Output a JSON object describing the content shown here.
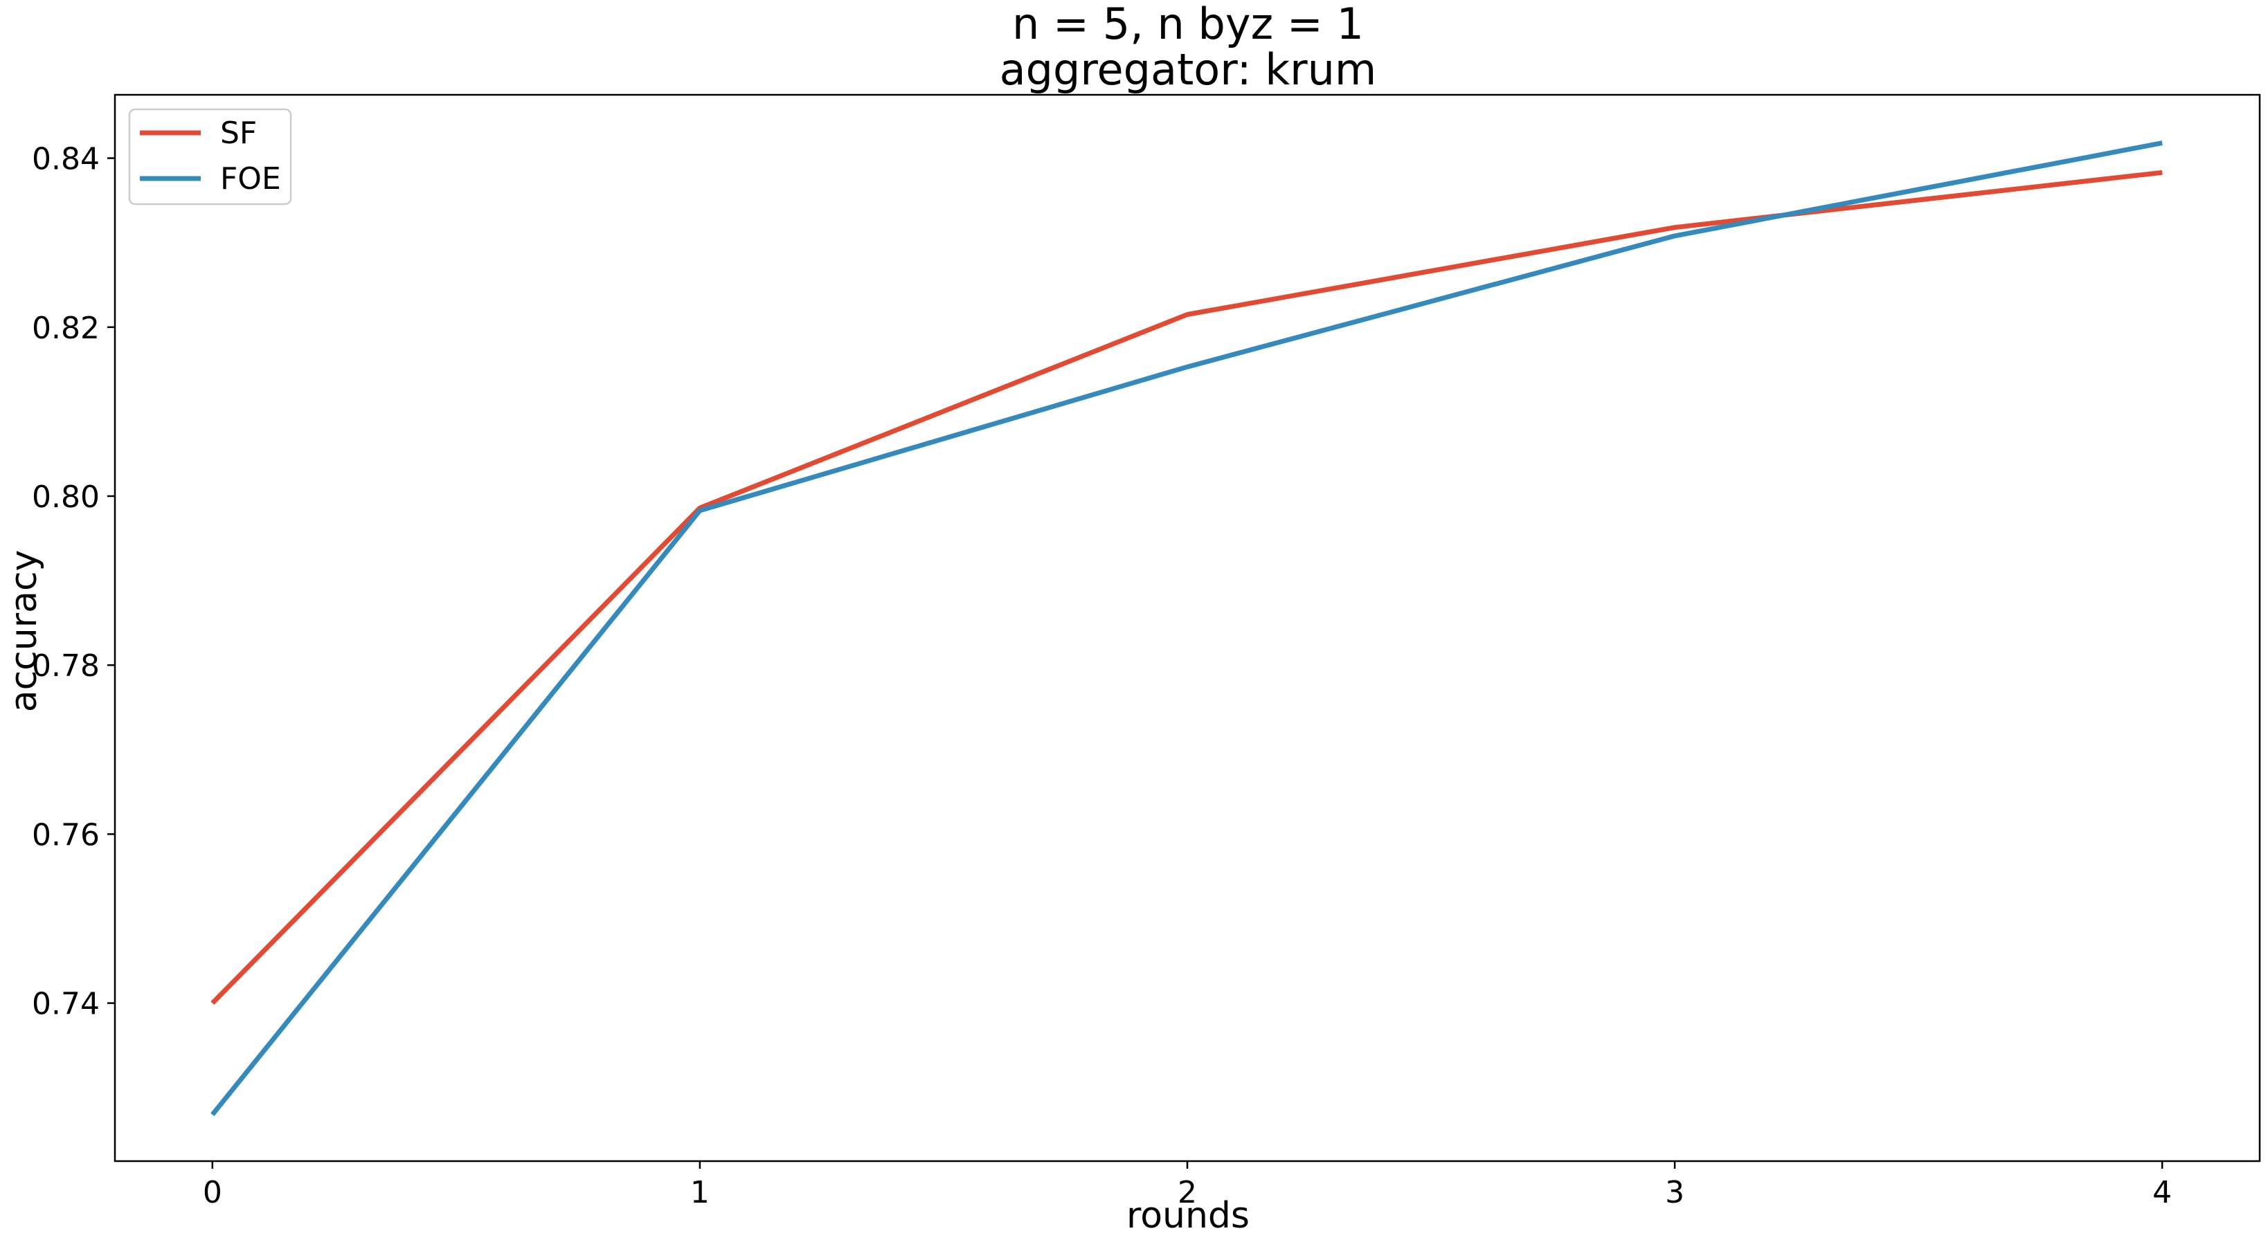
{
  "chart_data": {
    "type": "line",
    "title": "n = 5, n byz = 1",
    "subtitle": "aggregator: krum",
    "xlabel": "rounds",
    "ylabel": "accuracy",
    "x": [
      0,
      1,
      2,
      3,
      4
    ],
    "xticks": [
      "0",
      "1",
      "2",
      "3",
      "4"
    ],
    "yticks": [
      "0.74",
      "0.76",
      "0.78",
      "0.80",
      "0.82",
      "0.84"
    ],
    "xlim": [
      -0.2,
      4.2
    ],
    "ylim": [
      0.7213,
      0.8475
    ],
    "grid": false,
    "legend_position": "top-left",
    "series": [
      {
        "name": "SF",
        "color": "#E24A33",
        "values": [
          0.74,
          0.7986,
          0.8215,
          0.8318,
          0.8383
        ]
      },
      {
        "name": "FOE",
        "color": "#348ABD",
        "values": [
          0.7268,
          0.7983,
          0.8153,
          0.8308,
          0.8418
        ]
      }
    ]
  }
}
